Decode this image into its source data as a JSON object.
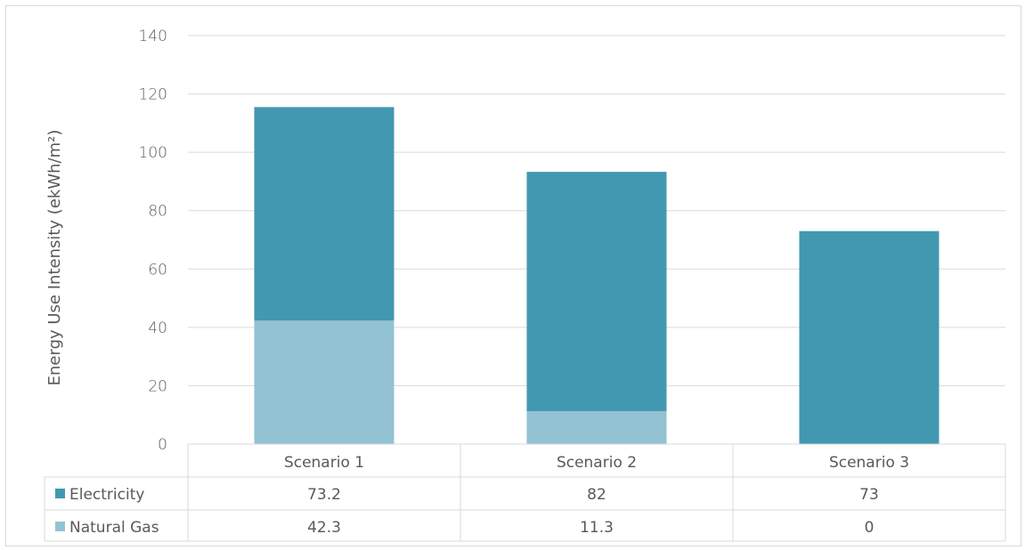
{
  "chart_data": {
    "type": "bar",
    "stacked": true,
    "categories": [
      "Scenario 1",
      "Scenario 2",
      "Scenario 3"
    ],
    "series": [
      {
        "name": "Natural Gas",
        "values": [
          42.3,
          11.3,
          0
        ],
        "display": [
          "42.3",
          "11.3",
          "0"
        ],
        "color": "#93c2d3"
      },
      {
        "name": "Electricity",
        "values": [
          73.2,
          82,
          73
        ],
        "display": [
          "73.2",
          "82",
          "73"
        ],
        "color": "#4298b0"
      }
    ],
    "table_order": [
      "Electricity",
      "Natural Gas"
    ],
    "ylabel": "Energy Use Intensity (ekWh/m²)",
    "ylim": [
      0,
      140
    ],
    "yticks": [
      0,
      20,
      40,
      60,
      80,
      100,
      120,
      140
    ],
    "grid": true,
    "legend": "data-table",
    "colors": {
      "gridline": "#d9d9d9",
      "text": "#595959",
      "border": "#d9d9d9"
    }
  }
}
